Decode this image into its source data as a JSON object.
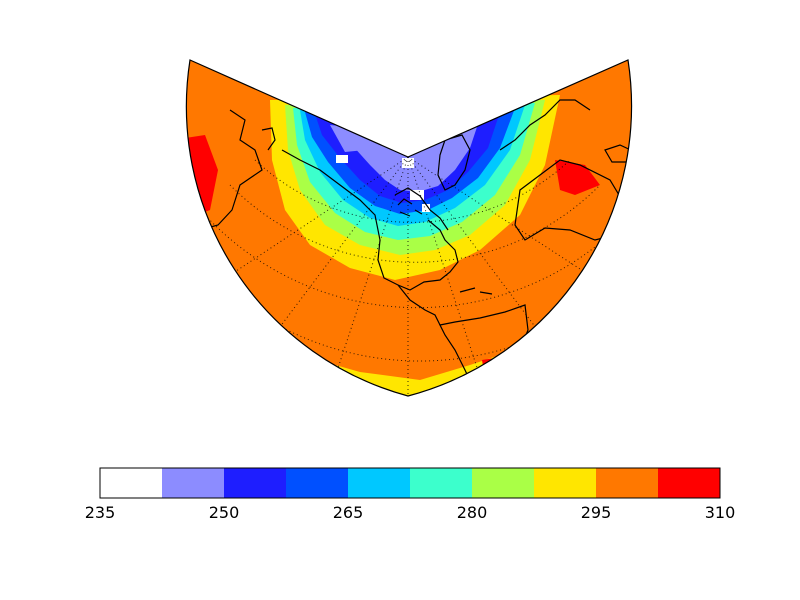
{
  "map": {
    "projection": "conic sector (Northern Hemisphere)",
    "field": "gridded temperature",
    "gridlines": "dotted",
    "coastlines": true
  },
  "colorbar": {
    "min": 235,
    "max": 310,
    "bins": [
      {
        "from": 235,
        "to": 242.5,
        "color": "#ffffff"
      },
      {
        "from": 242.5,
        "to": 250,
        "color": "#8c8cff"
      },
      {
        "from": 250,
        "to": 257.5,
        "color": "#1e1eff"
      },
      {
        "from": 257.5,
        "to": 265,
        "color": "#0050ff"
      },
      {
        "from": 265,
        "to": 272.5,
        "color": "#00c8ff"
      },
      {
        "from": 272.5,
        "to": 280,
        "color": "#3cffcc"
      },
      {
        "from": 280,
        "to": 287.5,
        "color": "#aaff46"
      },
      {
        "from": 287.5,
        "to": 295,
        "color": "#ffe600"
      },
      {
        "from": 295,
        "to": 302.5,
        "color": "#ff7800"
      },
      {
        "from": 302.5,
        "to": 310,
        "color": "#ff0000"
      }
    ],
    "ticks": [
      "235",
      "250",
      "265",
      "280",
      "295",
      "310"
    ]
  }
}
